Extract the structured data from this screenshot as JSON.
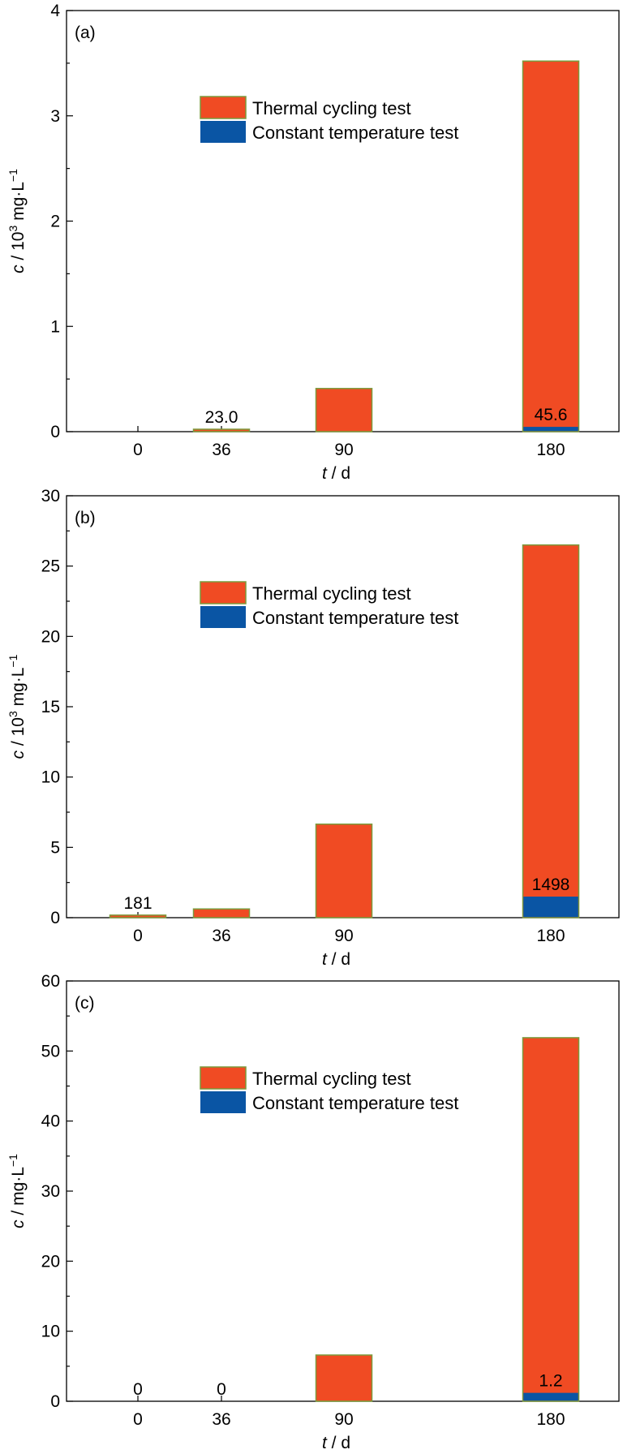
{
  "colors": {
    "thermal": "#f04b23",
    "constant": "#0a55a4",
    "bar_edge": "#7b9a3c"
  },
  "chart_data": [
    {
      "type": "bar",
      "panel_label": "(a)",
      "categories": [
        "0",
        "36",
        "90",
        "180"
      ],
      "x": [
        0,
        36,
        90,
        180
      ],
      "ylim": [
        0,
        4
      ],
      "yticks": [
        0,
        1,
        2,
        3,
        4
      ],
      "ylabel": {
        "var": "c",
        "before": " / 10",
        "sup": "3",
        "unit": " mg·L",
        "unit_sup": "−1"
      },
      "xlabel": {
        "var": "t",
        "rest": " / d"
      },
      "legend": {
        "placement": "upper-center",
        "entries": [
          "Thermal cycling test",
          "Constant temperature test"
        ]
      },
      "grid": false,
      "series": [
        {
          "name": "Thermal cycling test",
          "values": [
            0,
            0.023,
            0.41,
            3.52
          ]
        },
        {
          "name": "Constant temperature test",
          "values": [
            0,
            0,
            0,
            0.0456
          ]
        }
      ],
      "annotations": [
        {
          "x": 36,
          "text": "23.0"
        },
        {
          "x": 180,
          "text": "45.6"
        }
      ]
    },
    {
      "type": "bar",
      "panel_label": "(b)",
      "categories": [
        "0",
        "36",
        "90",
        "180"
      ],
      "x": [
        0,
        36,
        90,
        180
      ],
      "ylim": [
        0,
        30
      ],
      "yticks": [
        0,
        5,
        10,
        15,
        20,
        25,
        30
      ],
      "ylabel": {
        "var": "c",
        "before": " / 10",
        "sup": "3",
        "unit": " mg·L",
        "unit_sup": "−1"
      },
      "xlabel": {
        "var": "t",
        "rest": " / d"
      },
      "legend": {
        "placement": "upper-center",
        "entries": [
          "Thermal cycling test",
          "Constant temperature test"
        ]
      },
      "grid": false,
      "series": [
        {
          "name": "Thermal cycling test",
          "values": [
            0.181,
            0.62,
            6.65,
            26.5
          ]
        },
        {
          "name": "Constant temperature test",
          "values": [
            0,
            0,
            0,
            1.498
          ]
        }
      ],
      "annotations": [
        {
          "x": 0,
          "text": "181"
        },
        {
          "x": 180,
          "text": "1498"
        }
      ]
    },
    {
      "type": "bar",
      "panel_label": "(c)",
      "categories": [
        "0",
        "36",
        "90",
        "180"
      ],
      "x": [
        0,
        36,
        90,
        180
      ],
      "ylim": [
        0,
        60
      ],
      "yticks": [
        0,
        10,
        20,
        30,
        40,
        50,
        60
      ],
      "ylabel": {
        "var": "c",
        "before": " / mg·L",
        "unit_sup": "−1"
      },
      "xlabel": {
        "var": "t",
        "rest": " / d"
      },
      "legend": {
        "placement": "upper-center",
        "entries": [
          "Thermal cycling test",
          "Constant temperature test"
        ]
      },
      "grid": false,
      "series": [
        {
          "name": "Thermal cycling test",
          "values": [
            0,
            0,
            6.6,
            51.9
          ]
        },
        {
          "name": "Constant temperature test",
          "values": [
            0,
            0,
            0,
            1.2
          ]
        }
      ],
      "annotations": [
        {
          "x": 0,
          "text": "0"
        },
        {
          "x": 36,
          "text": "0"
        },
        {
          "x": 180,
          "text": "1.2"
        }
      ]
    }
  ]
}
